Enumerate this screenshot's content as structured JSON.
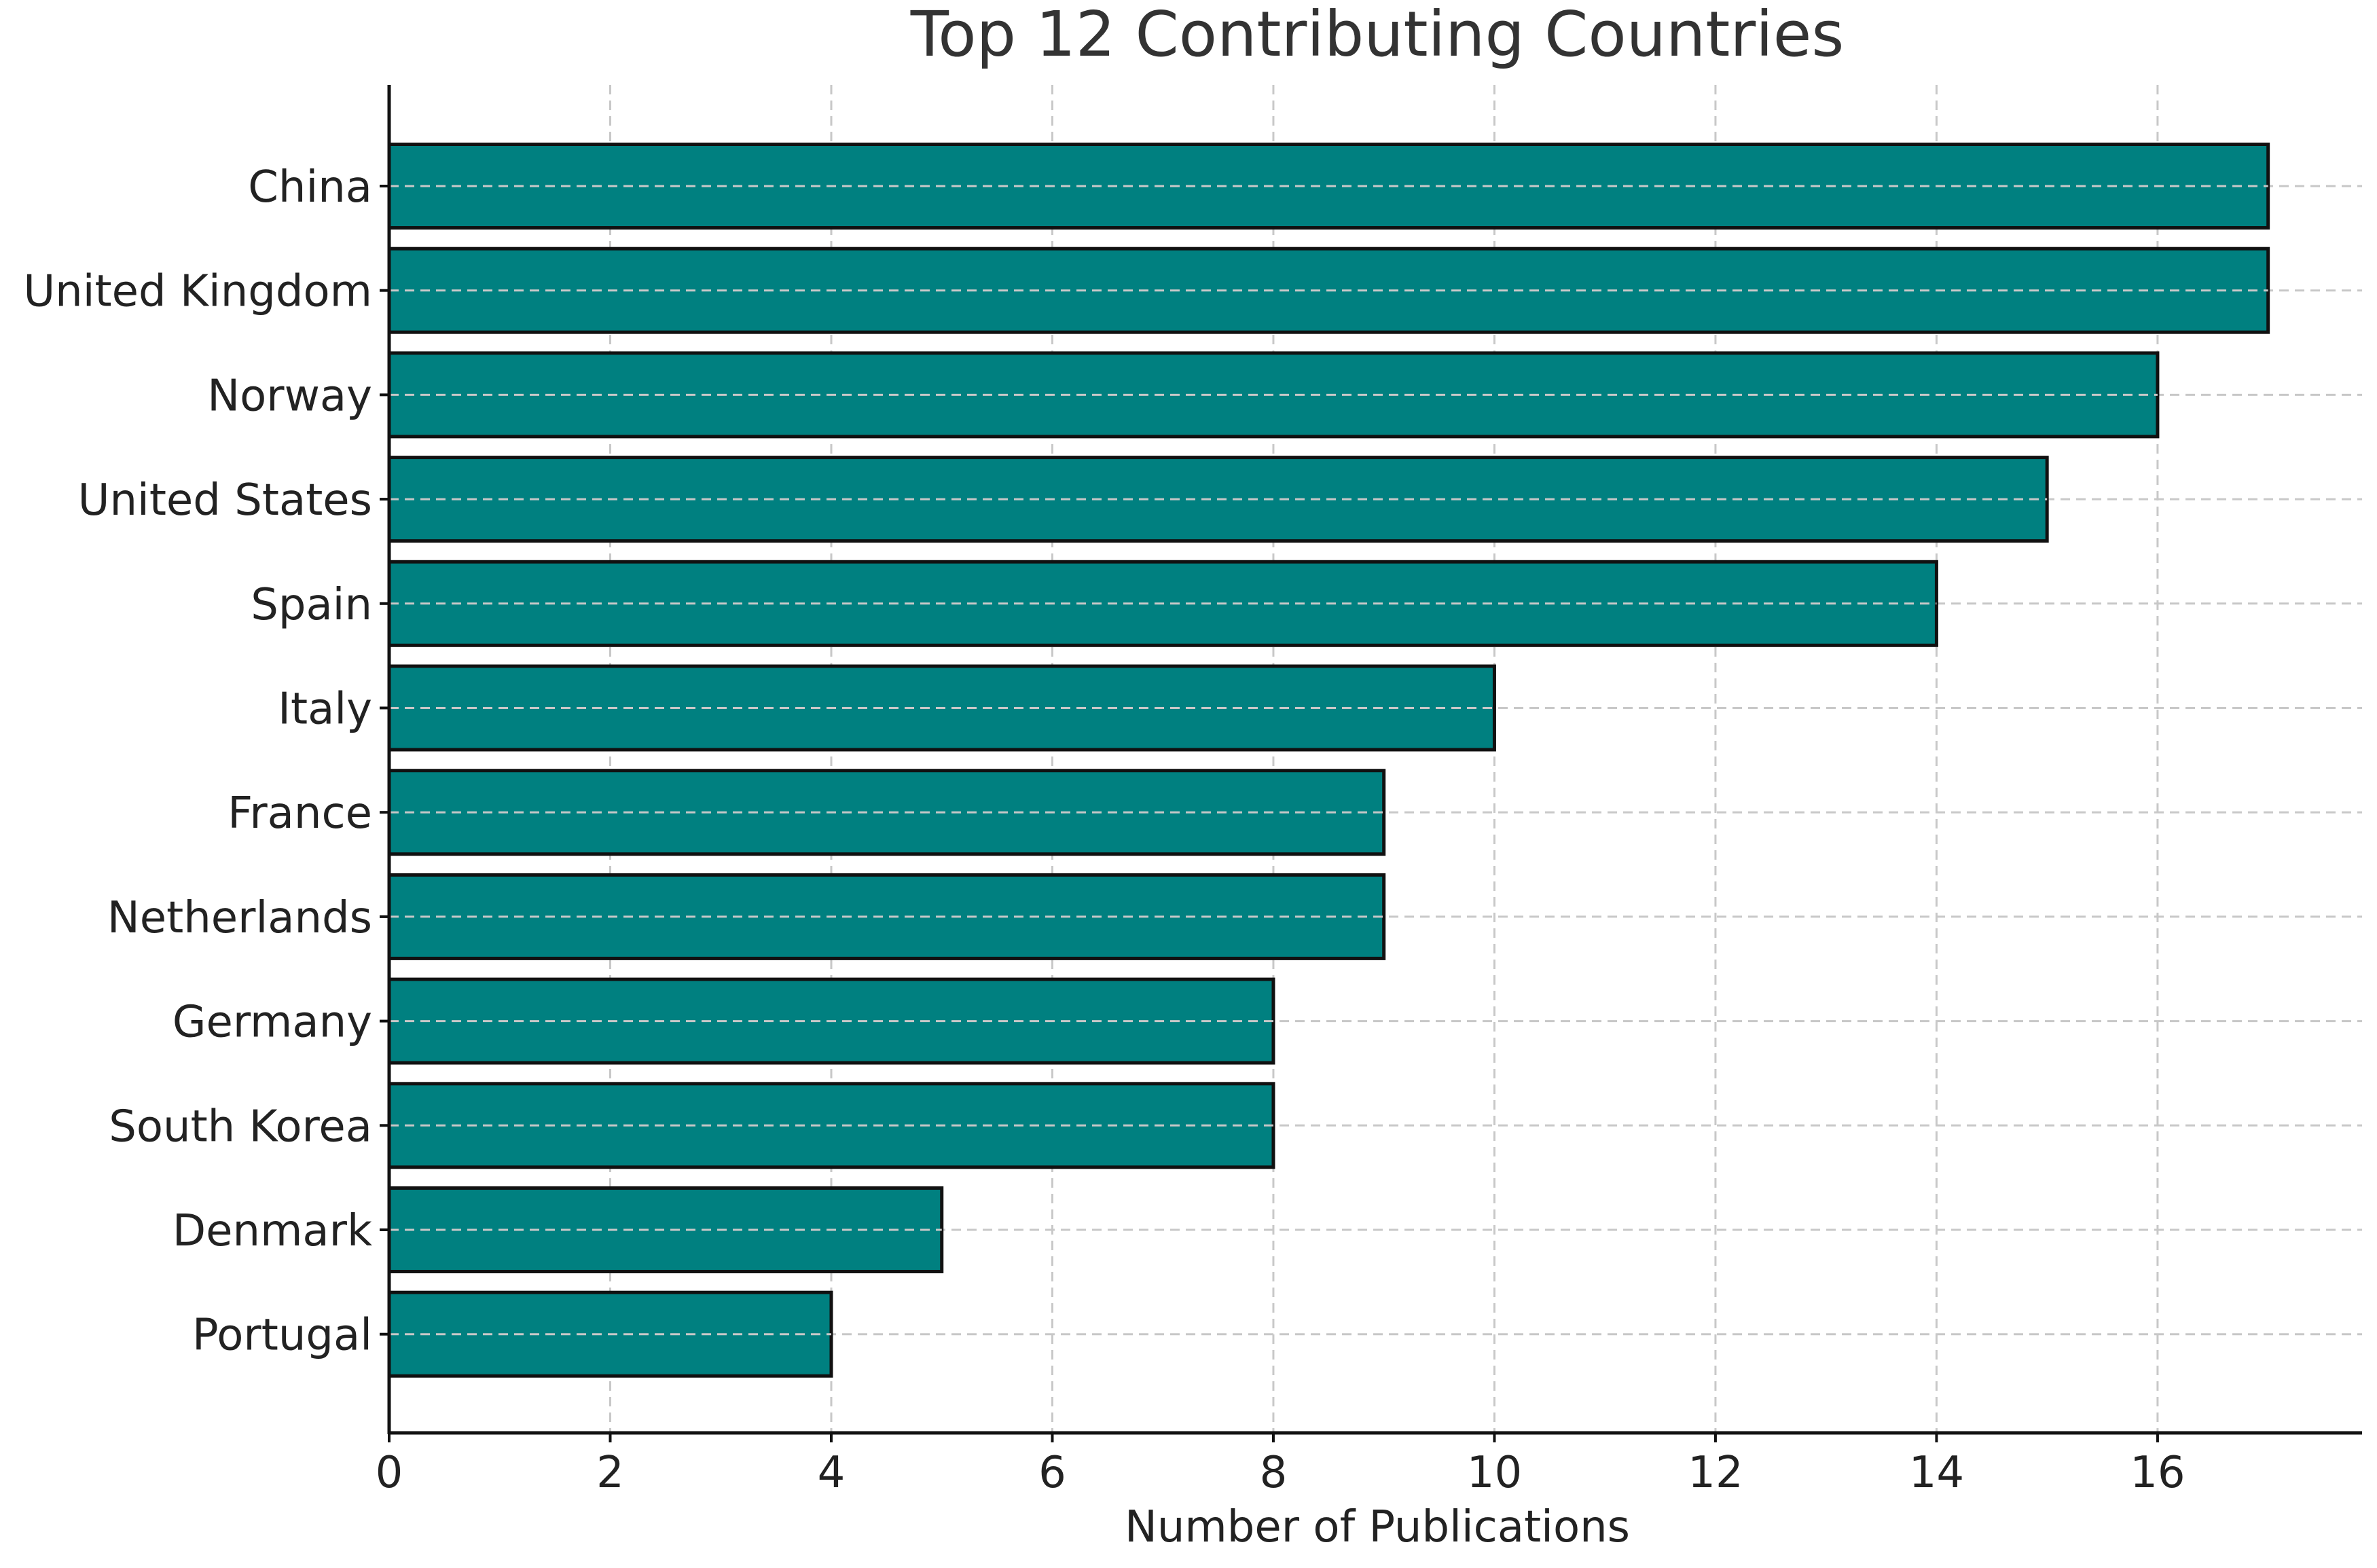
{
  "chart_data": {
    "type": "bar",
    "orientation": "horizontal",
    "title": "Top 12 Contributing Countries",
    "xlabel": "Number of Publications",
    "ylabel": "",
    "categories": [
      "China",
      "United Kingdom",
      "Norway",
      "United States",
      "Spain",
      "Italy",
      "France",
      "Netherlands",
      "Germany",
      "South Korea",
      "Denmark",
      "Portugal"
    ],
    "values": [
      17,
      17,
      16,
      15,
      14,
      10,
      9,
      9,
      8,
      8,
      5,
      4
    ],
    "xlim": [
      0,
      17.85
    ],
    "xticks": [
      0,
      2,
      4,
      6,
      8,
      10,
      12,
      14,
      16
    ],
    "xtick_labels": [
      "0",
      "2",
      "4",
      "6",
      "8",
      "10",
      "12",
      "14",
      "16"
    ],
    "grid": true,
    "bar_color": "#008080",
    "edge_color": "#111111",
    "grid_color": "#c8c8c8"
  }
}
